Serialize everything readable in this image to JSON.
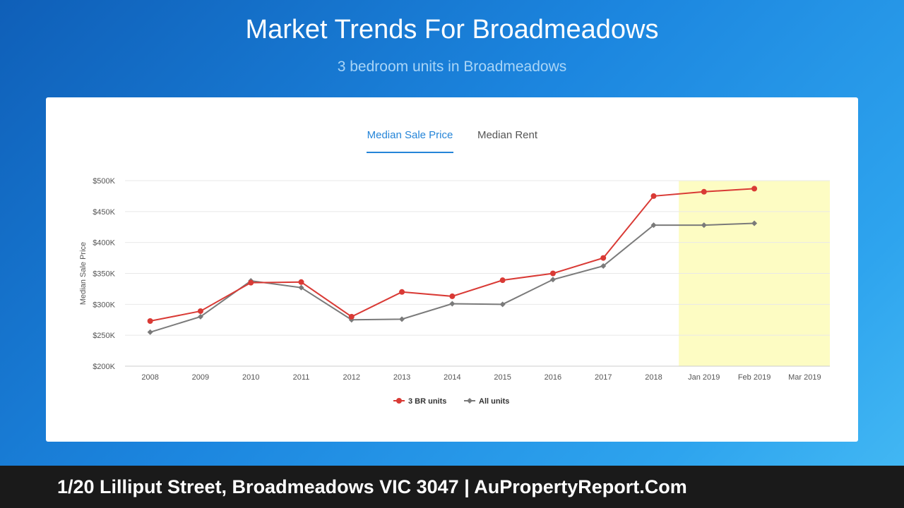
{
  "page": {
    "title": "Market Trends For Broadmeadows",
    "subtitle": "3 bedroom units in Broadmeadows"
  },
  "tabs": [
    {
      "label": "Median Sale Price",
      "active": true
    },
    {
      "label": "Median Rent",
      "active": false
    }
  ],
  "footer": {
    "text": "1/20 Lilliput Street, Broadmeadows VIC 3047 | AuPropertyReport.Com"
  },
  "colors": {
    "series_3br": "#d93a35",
    "series_all": "#7a7a7a",
    "forecast_band": "#fdfcc3",
    "accent": "#2585d8"
  },
  "chart_data": {
    "type": "line",
    "ylabel": "Median Sale Price",
    "xlabel": "",
    "categories": [
      "2008",
      "2009",
      "2010",
      "2011",
      "2012",
      "2013",
      "2014",
      "2015",
      "2016",
      "2017",
      "2018",
      "Jan 2019",
      "Feb 2019",
      "Mar 2019"
    ],
    "y_ticks": [
      200000,
      250000,
      300000,
      350000,
      400000,
      450000,
      500000
    ],
    "y_tick_labels": [
      "$200K",
      "$250K",
      "$300K",
      "$350K",
      "$400K",
      "$450K",
      "$500K"
    ],
    "ylim": [
      200000,
      500000
    ],
    "grid": true,
    "legend_position": "bottom-center",
    "highlight_band": {
      "from": "Jan 2019",
      "to": "Mar 2019"
    },
    "series": [
      {
        "name": "3 BR units",
        "marker": "circle",
        "values": [
          273000,
          289000,
          335000,
          336000,
          280000,
          320000,
          313000,
          339000,
          350000,
          375000,
          475000,
          482000,
          487000,
          null
        ]
      },
      {
        "name": "All units",
        "marker": "diamond",
        "values": [
          255000,
          280000,
          338000,
          327000,
          275000,
          276000,
          301000,
          300000,
          340000,
          362000,
          428000,
          428000,
          431000,
          null
        ]
      }
    ]
  }
}
